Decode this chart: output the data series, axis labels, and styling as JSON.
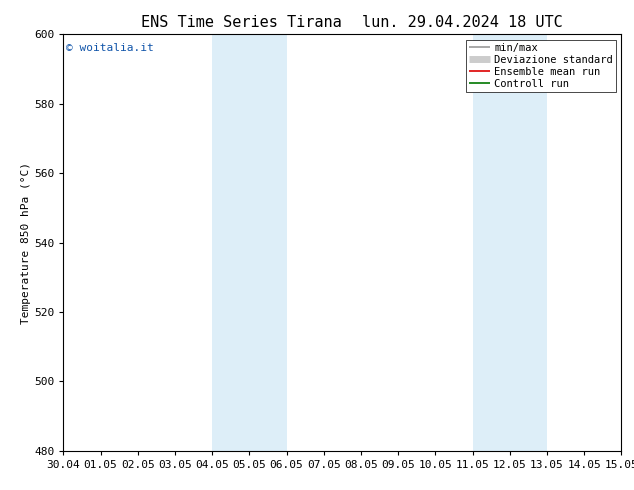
{
  "title_left": "ENS Time Series Tirana",
  "title_right": "lun. 29.04.2024 18 UTC",
  "ylabel": "Temperature 850 hPa (ᵒC)",
  "xlabel_ticks": [
    "30.04",
    "01.05",
    "02.05",
    "03.05",
    "04.05",
    "05.05",
    "06.05",
    "07.05",
    "08.05",
    "09.05",
    "10.05",
    "11.05",
    "12.05",
    "13.05",
    "14.05",
    "15.05"
  ],
  "ylim": [
    480,
    600
  ],
  "yticks": [
    480,
    500,
    520,
    540,
    560,
    580,
    600
  ],
  "shaded_bands": [
    {
      "xstart": 4,
      "xend": 6,
      "color": "#ddeef8"
    },
    {
      "xstart": 11,
      "xend": 13,
      "color": "#ddeef8"
    }
  ],
  "legend_entries": [
    {
      "label": "min/max",
      "color": "#999999",
      "lw": 1.2
    },
    {
      "label": "Deviazione standard",
      "color": "#cccccc",
      "lw": 5
    },
    {
      "label": "Ensemble mean run",
      "color": "#dd0000",
      "lw": 1.2
    },
    {
      "label": "Controll run",
      "color": "#007700",
      "lw": 1.2
    }
  ],
  "watermark": "© woitalia.it",
  "watermark_color": "#1155aa",
  "bg_color": "#ffffff",
  "plot_bg_color": "#ffffff",
  "tick_fontsize": 8,
  "title_fontsize": 11,
  "ylabel_fontsize": 8,
  "legend_fontsize": 7.5
}
